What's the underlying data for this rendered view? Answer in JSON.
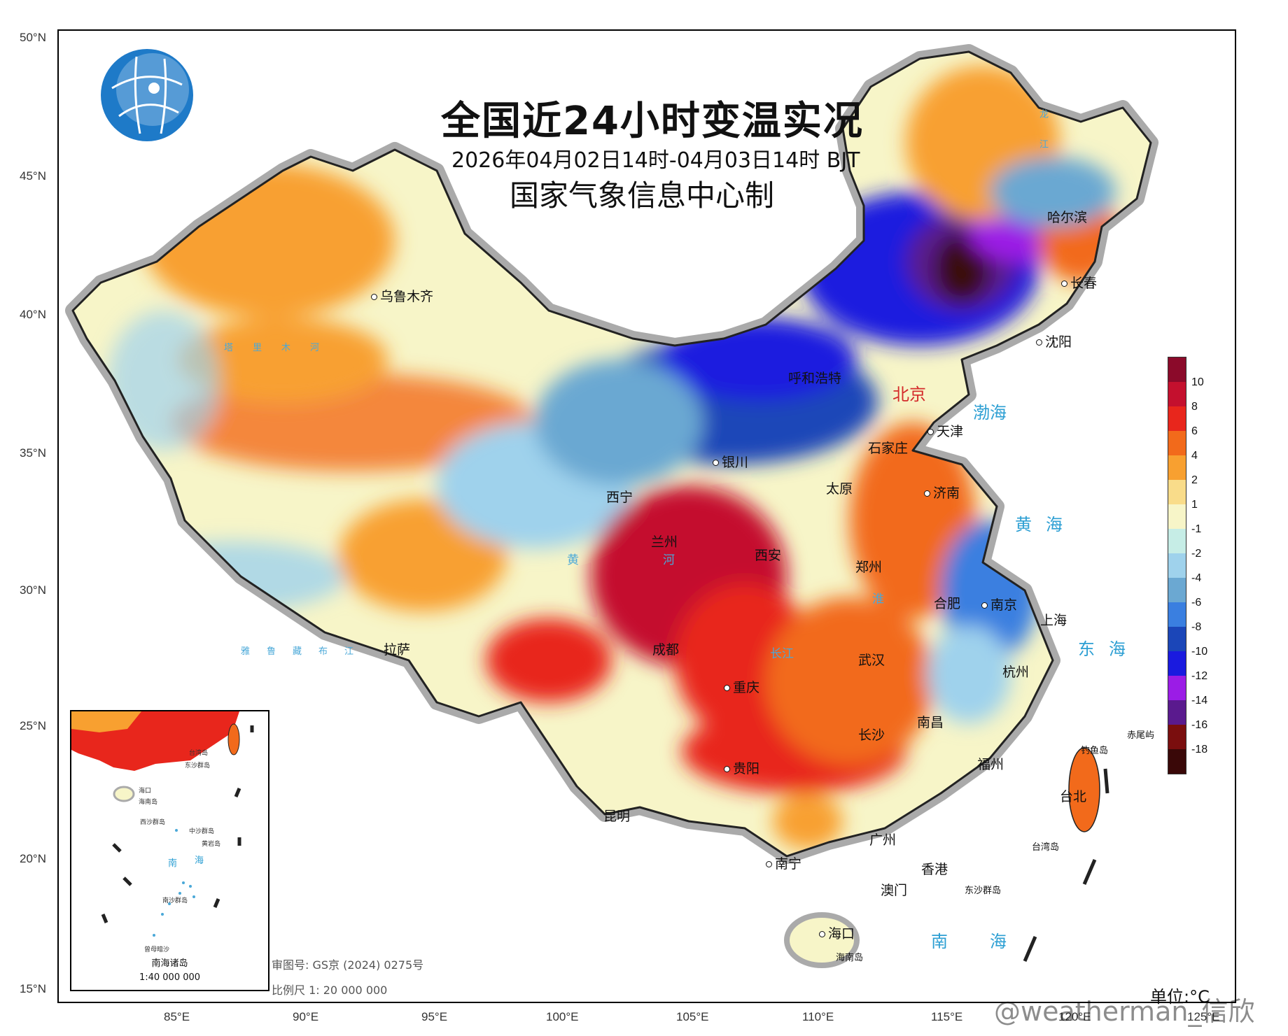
{
  "title": "全国近24小时变温实况",
  "subtitle": "2026年04月02日14时-04月03日14时 BJT",
  "producer": "国家气象信息中心制",
  "logo_icon": "globe-network-icon",
  "lat_labels": [
    "50°N",
    "45°N",
    "40°N",
    "35°N",
    "30°N",
    "25°N",
    "20°N",
    "15°N"
  ],
  "lon_labels": [
    "85°E",
    "90°E",
    "95°E",
    "100°E",
    "105°E",
    "110°E",
    "115°E",
    "120°E",
    "125°E"
  ],
  "legend": {
    "unit": "单位:°C",
    "labels": [
      "10",
      "8",
      "6",
      "4",
      "2",
      "1",
      "-1",
      "-2",
      "-4",
      "-6",
      "-8",
      "-10",
      "-12",
      "-14",
      "-16",
      "-18"
    ],
    "colors": [
      "#8b0a2a",
      "#c4102e",
      "#e8261c",
      "#f26a1b",
      "#f8a030",
      "#f9dc8a",
      "#f7f5c8",
      "#c6ede6",
      "#9fd2ec",
      "#6ba8d2",
      "#3a7fe0",
      "#1b46b8",
      "#1a1adf",
      "#9b1ce6",
      "#5a1a8e",
      "#7a0e0e",
      "#3a0808"
    ]
  },
  "cities": [
    {
      "name": "乌鲁木齐"
    },
    {
      "name": "哈尔滨"
    },
    {
      "name": "长春"
    },
    {
      "name": "沈阳"
    },
    {
      "name": "呼和浩特"
    },
    {
      "name": "北京"
    },
    {
      "name": "天津"
    },
    {
      "name": "石家庄"
    },
    {
      "name": "银川"
    },
    {
      "name": "太原"
    },
    {
      "name": "济南"
    },
    {
      "name": "西宁"
    },
    {
      "name": "兰州"
    },
    {
      "name": "西安"
    },
    {
      "name": "郑州"
    },
    {
      "name": "合肥"
    },
    {
      "name": "南京"
    },
    {
      "name": "上海"
    },
    {
      "name": "拉萨"
    },
    {
      "name": "成都"
    },
    {
      "name": "武汉"
    },
    {
      "name": "杭州"
    },
    {
      "name": "重庆"
    },
    {
      "name": "南昌"
    },
    {
      "name": "长沙"
    },
    {
      "name": "福州"
    },
    {
      "name": "贵阳"
    },
    {
      "name": "台北"
    },
    {
      "name": "昆明"
    },
    {
      "name": "广州"
    },
    {
      "name": "南宁"
    },
    {
      "name": "香港"
    },
    {
      "name": "澳门"
    },
    {
      "name": "海口"
    }
  ],
  "seas": [
    "渤海",
    "黄海",
    "东海",
    "南海"
  ],
  "rivers": [
    "塔里木河",
    "龙江",
    "黄河",
    "淮",
    "雅鲁藏布江",
    "长江"
  ],
  "islands": [
    "钓鱼岛",
    "赤尾屿",
    "台湾岛",
    "东沙群岛",
    "海南岛"
  ],
  "inset": {
    "name": "南海诸岛",
    "scale": "1:40 000 000",
    "labels": [
      "台湾岛",
      "东沙群岛",
      "海口",
      "海南岛",
      "西沙群岛",
      "中沙群岛",
      "黄岩岛",
      "南",
      "海",
      "南沙群岛",
      "曾母暗沙"
    ]
  },
  "review_no": "审图号: GS京 (2024) 0275号",
  "scale": "比例尺  1:  20 000 000",
  "watermark": "@weatherman_信欣"
}
